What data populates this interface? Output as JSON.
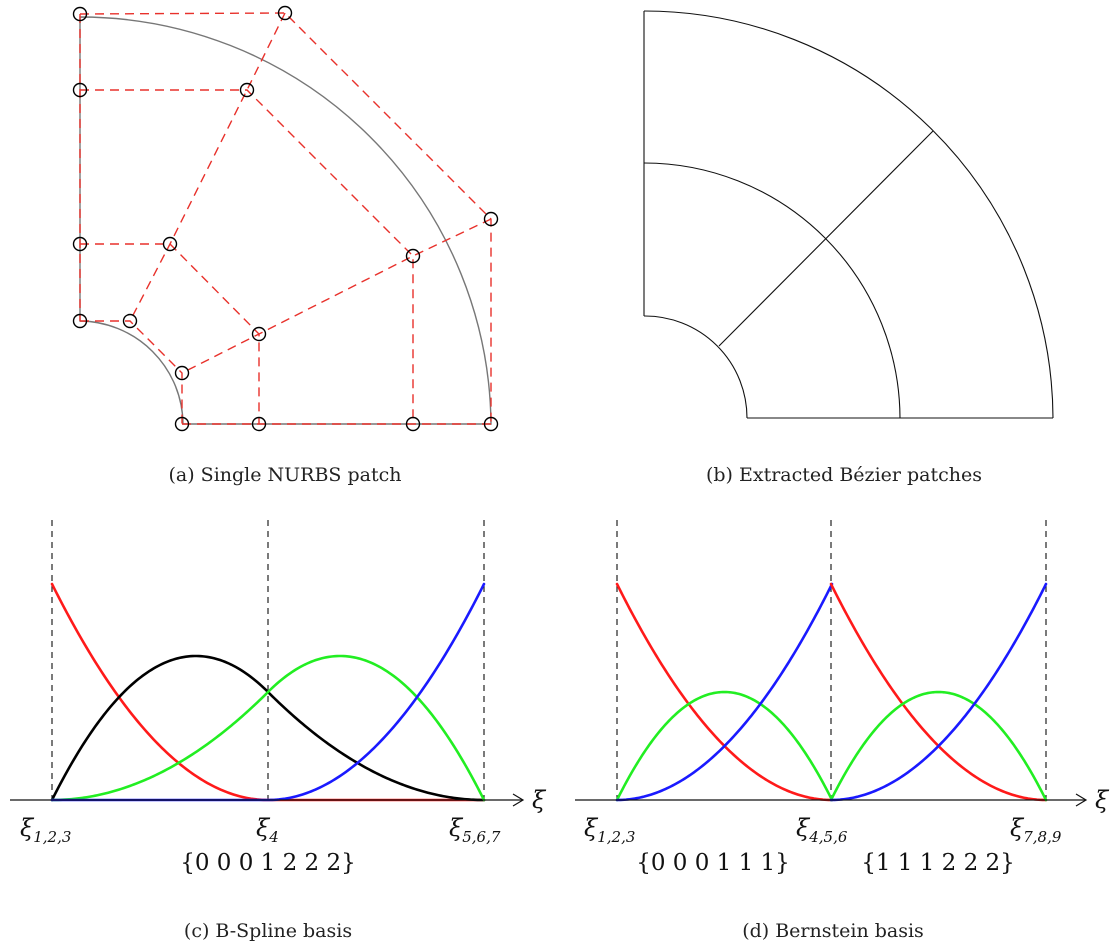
{
  "panels": {
    "a": {
      "caption": "(a) Single NURBS patch",
      "control_net_color": "#e8312b",
      "control_point_marker": "open-circle"
    },
    "b": {
      "caption": "(b) Extracted Bézier patches"
    },
    "c": {
      "caption": "(c) B-Spline basis",
      "axis_label": "ξ",
      "knot_labels": [
        {
          "base": "ξ",
          "sub": "1,2,3"
        },
        {
          "base": "ξ",
          "sub": "4"
        },
        {
          "base": "ξ",
          "sub": "5,6,7"
        }
      ],
      "knot_vector": "{0 0 0 1 2 2 2}",
      "curve_colors": [
        "#ff1a1a",
        "#000000",
        "#22ee22",
        "#1a1aff"
      ]
    },
    "d": {
      "caption": "(d) Bernstein basis",
      "axis_label": "ξ",
      "knot_labels": [
        {
          "base": "ξ",
          "sub": "1,2,3"
        },
        {
          "base": "ξ",
          "sub": "4,5,6"
        },
        {
          "base": "ξ",
          "sub": "7,8,9"
        }
      ],
      "knot_vectors": [
        "{0 0 0 1 1 1}",
        "{1 1 1 2 2 2}"
      ],
      "curve_colors": [
        "#ff1a1a",
        "#22ee22",
        "#1a1aff"
      ]
    }
  }
}
